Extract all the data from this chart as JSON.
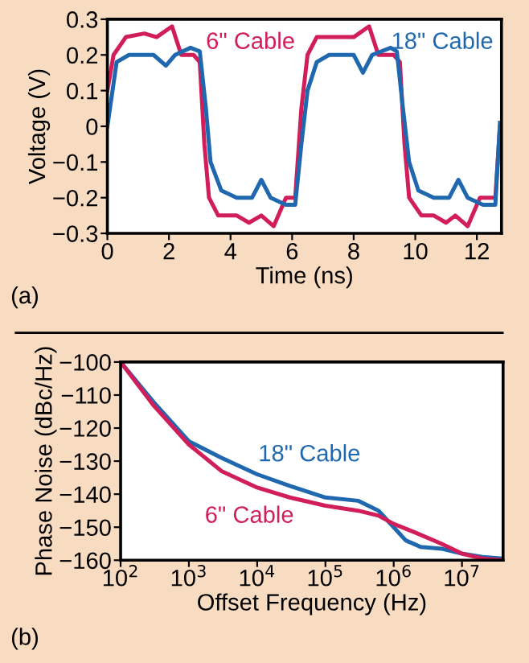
{
  "chart_data": [
    {
      "type": "line",
      "xlabel": "Time (ns)",
      "ylabel": "Voltage (V)",
      "annotations": [
        "(a)"
      ],
      "legend": false,
      "grid": false,
      "xlim": [
        0,
        12.8
      ],
      "xticks": [
        0,
        2,
        4,
        6,
        8,
        10,
        12
      ],
      "ylim": [
        -0.3,
        0.3
      ],
      "yticks": [
        {
          "value": -0.3,
          "label": "−0.3"
        },
        {
          "value": -0.2,
          "label": "−0.2"
        },
        {
          "value": -0.1,
          "label": "−0.1"
        },
        0,
        0.1,
        0.2,
        0.3
      ],
      "series": [
        {
          "name": "6\" Cable",
          "color": "#d11e5a",
          "x": [
            0,
            0.2,
            0.6,
            1.2,
            1.6,
            2.1,
            2.4,
            2.8,
            3.0,
            3.15,
            3.3,
            3.6,
            4.2,
            4.6,
            5.0,
            5.4,
            5.8,
            6.1,
            6.3,
            6.5,
            6.8,
            7.6,
            8.0,
            8.5,
            8.8,
            9.3,
            9.5,
            9.65,
            9.8,
            10.2,
            10.6,
            11.0,
            11.3,
            11.7,
            12.1,
            12.6,
            12.75
          ],
          "values": [
            0.1,
            0.2,
            0.25,
            0.26,
            0.25,
            0.28,
            0.2,
            0.2,
            0.18,
            -0.05,
            -0.2,
            -0.25,
            -0.25,
            -0.27,
            -0.25,
            -0.28,
            -0.2,
            -0.2,
            0.05,
            0.2,
            0.25,
            0.25,
            0.25,
            0.28,
            0.2,
            0.2,
            0.18,
            -0.05,
            -0.2,
            -0.25,
            -0.25,
            -0.27,
            -0.25,
            -0.28,
            -0.2,
            -0.2,
            0.0
          ]
        },
        {
          "name": "18\" Cable",
          "color": "#1f68b0",
          "x": [
            0,
            0.3,
            0.7,
            1.5,
            1.9,
            2.2,
            2.7,
            3.0,
            3.2,
            3.35,
            3.7,
            4.2,
            4.7,
            5.0,
            5.3,
            5.8,
            6.1,
            6.3,
            6.5,
            6.8,
            7.2,
            8.0,
            8.3,
            8.6,
            9.2,
            9.4,
            9.6,
            9.8,
            10.1,
            10.6,
            11.1,
            11.4,
            11.7,
            12.2,
            12.6,
            12.75
          ],
          "values": [
            0,
            0.18,
            0.2,
            0.2,
            0.17,
            0.2,
            0.22,
            0.21,
            0.05,
            -0.1,
            -0.18,
            -0.2,
            -0.2,
            -0.15,
            -0.2,
            -0.22,
            -0.22,
            -0.05,
            0.1,
            0.18,
            0.2,
            0.2,
            0.15,
            0.2,
            0.22,
            0.21,
            0.05,
            -0.1,
            -0.18,
            -0.2,
            -0.2,
            -0.15,
            -0.2,
            -0.22,
            -0.22,
            0.01
          ]
        }
      ]
    },
    {
      "type": "line",
      "xlabel": "Offset Frequency (Hz)",
      "ylabel": "Phase Noise (dBc/Hz)",
      "annotations": [
        "(b)"
      ],
      "legend": false,
      "grid": false,
      "log": "x",
      "xlim": [
        100,
        40000000
      ],
      "xticks": [
        {
          "value": 100,
          "label": "10$^{2}$"
        },
        {
          "value": 1000,
          "label": "10$^{3}$"
        },
        {
          "value": 10000,
          "label": "10$^{4}$"
        },
        {
          "value": 100000,
          "label": "10$^{5}$"
        },
        {
          "value": 1000000,
          "label": "10$^{6}$"
        },
        {
          "value": 10000000,
          "label": "10$^{7}$"
        }
      ],
      "ylim": [
        -160,
        -100
      ],
      "yticks": [
        {
          "value": -160,
          "label": "−160"
        },
        {
          "value": -150,
          "label": "−150"
        },
        {
          "value": -140,
          "label": "−140"
        },
        {
          "value": -130,
          "label": "−130"
        },
        {
          "value": -120,
          "label": "−120"
        },
        {
          "value": -110,
          "label": "−110"
        },
        {
          "value": -100,
          "label": "−100"
        }
      ],
      "series": [
        {
          "name": "18\" Cable",
          "color": "#1f68b0",
          "x": [
            100,
            300,
            1000,
            3000,
            10000,
            30000,
            100000,
            300000,
            600000,
            1000000,
            1500000,
            2500000,
            5000000,
            10000000,
            20000000,
            40000000
          ],
          "values": [
            -100,
            -112,
            -124,
            -129,
            -134,
            -137.5,
            -141,
            -142,
            -145,
            -150,
            -154,
            -156,
            -156.5,
            -158,
            -159,
            -159.5
          ]
        },
        {
          "name": "6\" Cable",
          "color": "#d11e5a",
          "x": [
            100,
            300,
            1000,
            3000,
            10000,
            30000,
            100000,
            300000,
            600000,
            1000000,
            2000000,
            5000000,
            10000000,
            20000000,
            40000000
          ],
          "values": [
            -100,
            -113,
            -125,
            -133,
            -138,
            -141,
            -143.5,
            -145,
            -146.5,
            -149,
            -151.5,
            -155,
            -158,
            -159.5,
            -160
          ]
        }
      ]
    }
  ]
}
